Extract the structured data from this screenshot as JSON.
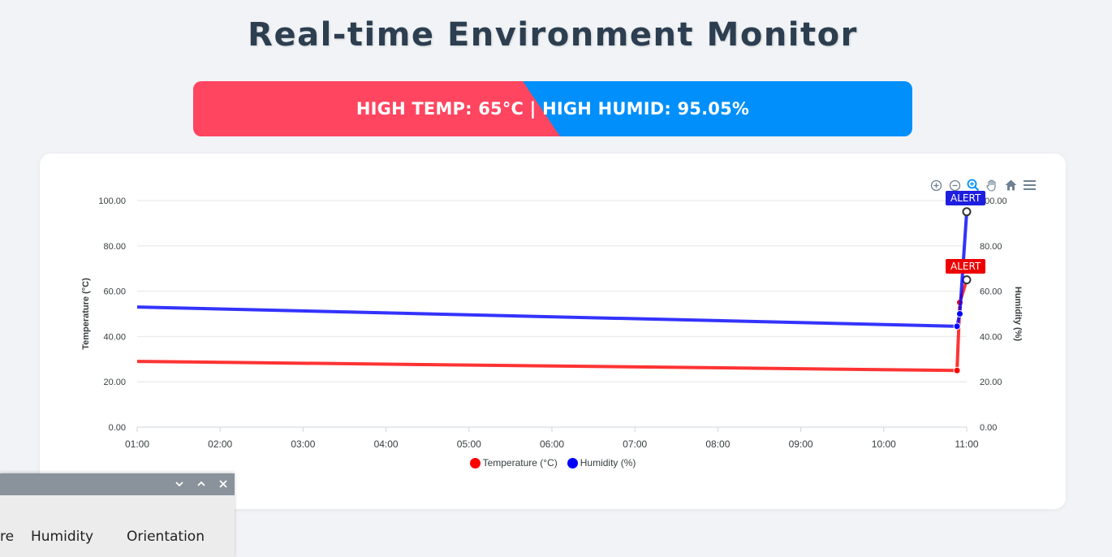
{
  "page": {
    "title": "Real-time Environment Monitor"
  },
  "alert": {
    "text": "HIGH TEMP: 65°C | HIGH HUMID: 95.05%"
  },
  "toolbar": {
    "icons": [
      "zoom-in-icon",
      "zoom-out-icon",
      "zoom-select-icon",
      "pan-hand-icon",
      "home-reset-icon",
      "menu-icon"
    ]
  },
  "chart_data": {
    "type": "line",
    "x_ticks": [
      "01:00",
      "02:00",
      "03:00",
      "04:00",
      "05:00",
      "06:00",
      "07:00",
      "08:00",
      "09:00",
      "10:00",
      "11:00"
    ],
    "y_left": {
      "label": "Temperature (°C)",
      "ticks": [
        "0.00",
        "20.00",
        "40.00",
        "60.00",
        "80.00",
        "100.00"
      ],
      "range": [
        0,
        100
      ]
    },
    "y_right": {
      "label": "Humidity (%)",
      "ticks": [
        "0.00",
        "20.00",
        "40.00",
        "60.00",
        "80.00",
        "100.00"
      ],
      "range": [
        0,
        100
      ]
    },
    "grid": true,
    "legend": "bottom-center",
    "series": [
      {
        "name": "Temperature (°C)",
        "color": "#ff0000",
        "x": [
          "01:00",
          "10:53",
          "10:55",
          "11:00"
        ],
        "values": [
          29,
          25,
          55,
          65
        ]
      },
      {
        "name": "Humidity (%)",
        "color": "#0000ff",
        "x": [
          "01:00",
          "10:53",
          "10:55",
          "11:00"
        ],
        "values": [
          53,
          44.5,
          50,
          95.05
        ]
      }
    ],
    "annotations": [
      {
        "text": "ALERT",
        "series": "Humidity (%)",
        "x": "11:00",
        "y": 95.05,
        "color": "#1e1ee0"
      },
      {
        "text": "ALERT",
        "series": "Temperature (°C)",
        "x": "11:00",
        "y": 65,
        "color": "#ee0000"
      }
    ]
  },
  "sub_window": {
    "columns": [
      "re",
      "Humidity",
      "Orientation"
    ]
  }
}
